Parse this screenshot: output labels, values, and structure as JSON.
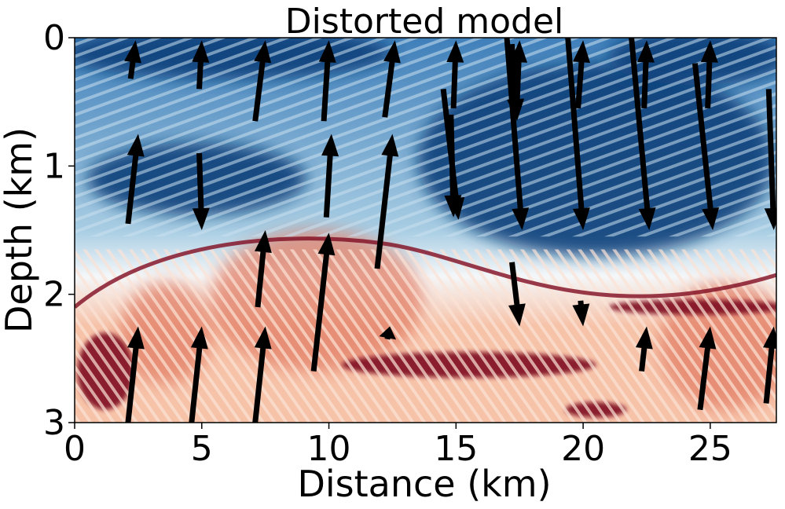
{
  "chart_data": {
    "type": "heatmap",
    "title": "Distorted model",
    "xlabel": "Distance (km)",
    "ylabel": "Depth (km)",
    "xlim": [
      0,
      27.6
    ],
    "ylim": [
      3,
      0
    ],
    "xticks": [
      0,
      5,
      10,
      15,
      20,
      25
    ],
    "xtick_labels": [
      "0",
      "5",
      "10",
      "15",
      "20",
      "25"
    ],
    "yticks": [
      0,
      1,
      2,
      3
    ],
    "ytick_labels": [
      "0",
      "1",
      "2",
      "3"
    ],
    "colormap": "RdBu",
    "colors": {
      "dark_blue": "#0b3f7a",
      "mid_blue": "#3f7fba",
      "light_blue": "#a8cde3",
      "white": "#f4f7f9",
      "light_red": "#f6c2a8",
      "mid_red": "#e27f66",
      "dark_red": "#7f0b20",
      "arrow": "#000000"
    },
    "dark_blue_regions": [
      {
        "cx": 4.8,
        "cy": 1.1,
        "rx": 4.3,
        "ry": 0.28
      },
      {
        "cx": 20.5,
        "cy": 0.95,
        "rx": 7.0,
        "ry": 0.75
      },
      {
        "cx": 6.0,
        "cy": 0.12,
        "rx": 6.5,
        "ry": 0.2
      },
      {
        "cx": 24.5,
        "cy": 0.15,
        "rx": 3.5,
        "ry": 0.22
      }
    ],
    "red_regions": [
      {
        "cx": 9.5,
        "cy": 2.05,
        "rx": 4.2,
        "ry": 0.55
      },
      {
        "cx": 25.6,
        "cy": 2.4,
        "rx": 2.6,
        "ry": 0.5
      },
      {
        "cx": 3.6,
        "cy": 2.3,
        "rx": 1.8,
        "ry": 0.4
      }
    ],
    "dark_red_bands": [
      {
        "cx": 1.2,
        "cy": 2.6,
        "rx": 1.1,
        "ry": 0.3
      },
      {
        "cx": 15.5,
        "cy": 2.55,
        "rx": 5.0,
        "ry": 0.1
      },
      {
        "cx": 20.5,
        "cy": 2.9,
        "rx": 1.2,
        "ry": 0.06
      },
      {
        "cx": 24.5,
        "cy": 2.1,
        "rx": 3.5,
        "ry": 0.06
      }
    ],
    "arrows": [
      {
        "x0": 2.2,
        "y0": 0.32,
        "x1": 2.4,
        "y1": 0.02
      },
      {
        "x0": 4.9,
        "y0": 0.4,
        "x1": 5.0,
        "y1": 0.02
      },
      {
        "x0": 7.1,
        "y0": 0.65,
        "x1": 7.5,
        "y1": 0.02
      },
      {
        "x0": 9.8,
        "y0": 0.65,
        "x1": 10.0,
        "y1": 0.02
      },
      {
        "x0": 12.2,
        "y0": 0.62,
        "x1": 12.6,
        "y1": 0.02
      },
      {
        "x0": 14.9,
        "y0": 0.55,
        "x1": 15.0,
        "y1": 0.02
      },
      {
        "x0": 17.4,
        "y0": 0.5,
        "x1": 17.5,
        "y1": 0.02
      },
      {
        "x0": 19.8,
        "y0": 0.55,
        "x1": 20.0,
        "y1": 0.02
      },
      {
        "x0": 22.4,
        "y0": 0.55,
        "x1": 22.5,
        "y1": 0.02
      },
      {
        "x0": 24.9,
        "y0": 0.55,
        "x1": 25.0,
        "y1": 0.02
      },
      {
        "x0": 17.0,
        "y0": 0.0,
        "x1": 17.6,
        "y1": 1.5
      },
      {
        "x0": 19.4,
        "y0": 0.0,
        "x1": 20.0,
        "y1": 1.5
      },
      {
        "x0": 21.9,
        "y0": 0.0,
        "x1": 22.6,
        "y1": 1.5
      },
      {
        "x0": 24.4,
        "y0": 0.2,
        "x1": 25.1,
        "y1": 1.5
      },
      {
        "x0": 14.5,
        "y0": 0.4,
        "x1": 15.1,
        "y1": 1.42
      },
      {
        "x0": 17.2,
        "y0": 0.05,
        "x1": 17.4,
        "y1": 0.65
      },
      {
        "x0": 2.1,
        "y0": 1.45,
        "x1": 2.5,
        "y1": 0.75
      },
      {
        "x0": 4.9,
        "y0": 0.9,
        "x1": 5.0,
        "y1": 1.5
      },
      {
        "x0": 9.9,
        "y0": 1.4,
        "x1": 10.1,
        "y1": 0.75
      },
      {
        "x0": 11.9,
        "y0": 1.8,
        "x1": 12.5,
        "y1": 0.75
      },
      {
        "x0": 7.2,
        "y0": 2.1,
        "x1": 7.5,
        "y1": 1.5
      },
      {
        "x0": 9.4,
        "y0": 2.6,
        "x1": 10.0,
        "y1": 1.52
      },
      {
        "x0": 17.2,
        "y0": 1.75,
        "x1": 17.5,
        "y1": 2.25
      },
      {
        "x0": 2.1,
        "y0": 3.0,
        "x1": 2.5,
        "y1": 2.25
      },
      {
        "x0": 4.6,
        "y0": 3.0,
        "x1": 5.0,
        "y1": 2.25
      },
      {
        "x0": 7.1,
        "y0": 3.0,
        "x1": 7.5,
        "y1": 2.25
      },
      {
        "x0": 22.3,
        "y0": 2.6,
        "x1": 22.5,
        "y1": 2.25
      },
      {
        "x0": 24.6,
        "y0": 2.9,
        "x1": 25.0,
        "y1": 2.25
      },
      {
        "x0": 27.2,
        "y0": 2.85,
        "x1": 27.5,
        "y1": 2.25
      },
      {
        "x0": 27.3,
        "y0": 0.4,
        "x1": 27.5,
        "y1": 1.5
      },
      {
        "x0": 14.8,
        "y0": 0.6,
        "x1": 14.9,
        "y1": 1.4
      },
      {
        "x0": 12.3,
        "y0": 2.35,
        "x1": 12.4,
        "y1": 2.25
      },
      {
        "x0": 19.9,
        "y0": 2.05,
        "x1": 20.0,
        "y1": 2.25
      }
    ]
  }
}
